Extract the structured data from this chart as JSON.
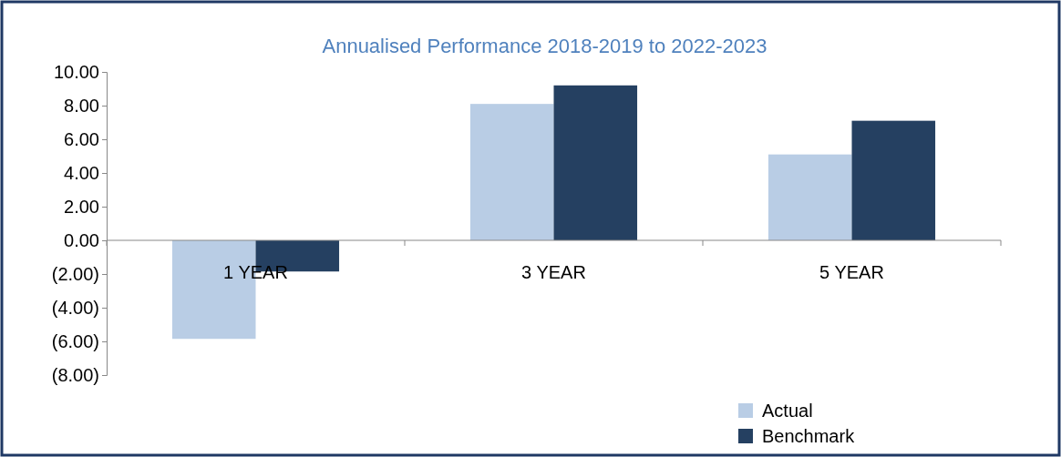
{
  "chart_data": {
    "type": "bar",
    "title": "Annualised Performance 2018-2019 to 2022-2023",
    "categories": [
      "1 YEAR",
      "3 YEAR",
      "5 YEAR"
    ],
    "series": [
      {
        "name": "Actual",
        "color": "#b9cde5",
        "values": [
          -5.85,
          8.1,
          5.1
        ]
      },
      {
        "name": "Benchmark",
        "color": "#254061",
        "values": [
          -1.85,
          9.2,
          7.1
        ]
      }
    ],
    "ylim": [
      -8,
      10
    ],
    "yticks": [
      {
        "value": -8,
        "label": "(8.00)"
      },
      {
        "value": -6,
        "label": "(6.00)"
      },
      {
        "value": -4,
        "label": "(4.00)"
      },
      {
        "value": -2,
        "label": "(2.00)"
      },
      {
        "value": 0,
        "label": "0.00"
      },
      {
        "value": 2,
        "label": "2.00"
      },
      {
        "value": 4,
        "label": "4.00"
      },
      {
        "value": 6,
        "label": "6.00"
      },
      {
        "value": 8,
        "label": "8.00"
      },
      {
        "value": 10,
        "label": "10.00"
      }
    ],
    "grid": false,
    "legend": "bottom right"
  }
}
